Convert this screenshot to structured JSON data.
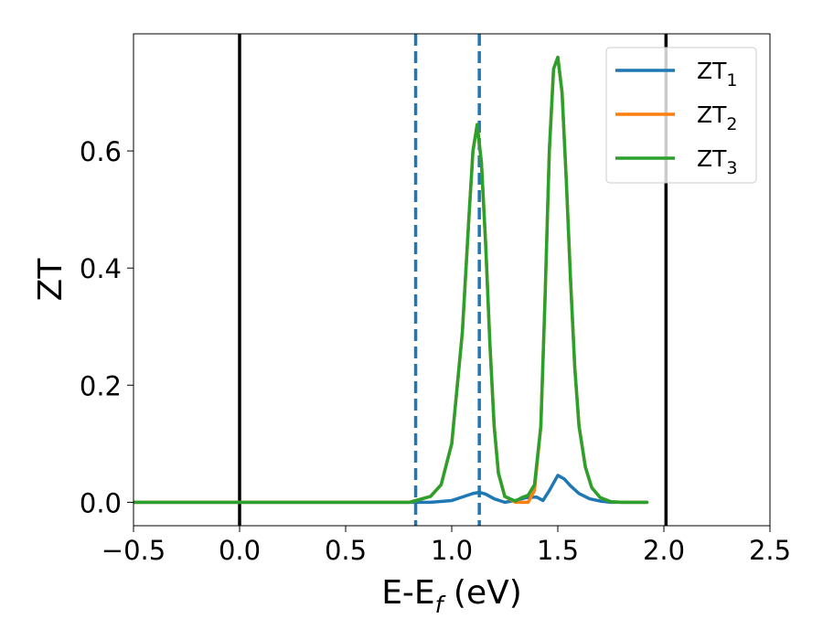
{
  "chart_data": {
    "type": "line",
    "xlabel": {
      "main": "E-E",
      "sub": "f",
      "rest": " (eV)"
    },
    "ylabel": "ZT",
    "xlim": [
      -0.5,
      2.5
    ],
    "ylim": [
      -0.04,
      0.8
    ],
    "xticks": [
      {
        "value": -0.5,
        "label": "−0.5"
      },
      {
        "value": 0.0,
        "label": "0.0"
      },
      {
        "value": 0.5,
        "label": "0.5"
      },
      {
        "value": 1.0,
        "label": "1.0"
      },
      {
        "value": 1.5,
        "label": "1.5"
      },
      {
        "value": 2.0,
        "label": "2.0"
      },
      {
        "value": 2.5,
        "label": "2.5"
      }
    ],
    "yticks": [
      {
        "value": 0.0,
        "label": "0.0"
      },
      {
        "value": 0.2,
        "label": "0.2"
      },
      {
        "value": 0.4,
        "label": "0.4"
      },
      {
        "value": 0.6,
        "label": "0.6"
      }
    ],
    "grid": false,
    "legend_position": "top-right",
    "vertical_lines": [
      {
        "x": 0.0,
        "style": "solid",
        "color": "#000000"
      },
      {
        "x": 2.01,
        "style": "solid",
        "color": "#000000"
      },
      {
        "x": 0.83,
        "style": "dashed",
        "color": "#1f77b4"
      },
      {
        "x": 1.13,
        "style": "dashed",
        "color": "#1f77b4"
      }
    ],
    "series": [
      {
        "name": "ZT",
        "name_sub": "1",
        "color": "#1f77b4",
        "x": [
          -0.5,
          0.8,
          0.9,
          1.0,
          1.05,
          1.1,
          1.13,
          1.16,
          1.2,
          1.25,
          1.3,
          1.35,
          1.4,
          1.43,
          1.46,
          1.5,
          1.53,
          1.56,
          1.6,
          1.65,
          1.7,
          1.75,
          1.8,
          1.92
        ],
        "y": [
          0.0,
          0.0,
          0.0,
          0.003,
          0.009,
          0.015,
          0.017,
          0.014,
          0.006,
          0.0,
          0.003,
          0.008,
          0.009,
          0.003,
          0.02,
          0.046,
          0.04,
          0.028,
          0.015,
          0.006,
          0.002,
          0.0,
          0.0,
          0.0
        ]
      },
      {
        "name": "ZT",
        "name_sub": "2",
        "color": "#ff7f0e",
        "x": [
          -0.5,
          0.8,
          0.9,
          0.95,
          1.0,
          1.05,
          1.08,
          1.1,
          1.12,
          1.14,
          1.16,
          1.18,
          1.2,
          1.22,
          1.25,
          1.3,
          1.33,
          1.36,
          1.39,
          1.42,
          1.44,
          1.46,
          1.48,
          1.5,
          1.52,
          1.54,
          1.56,
          1.58,
          1.6,
          1.63,
          1.66,
          1.7,
          1.75,
          1.8,
          1.92
        ],
        "y": [
          0.0,
          0.0,
          0.01,
          0.03,
          0.1,
          0.29,
          0.48,
          0.6,
          0.645,
          0.58,
          0.44,
          0.27,
          0.13,
          0.05,
          0.01,
          0.0,
          0.0,
          0.0,
          0.02,
          0.13,
          0.35,
          0.6,
          0.74,
          0.76,
          0.7,
          0.55,
          0.38,
          0.23,
          0.13,
          0.06,
          0.025,
          0.008,
          0.001,
          0.0,
          0.0
        ]
      },
      {
        "name": "ZT",
        "name_sub": "3",
        "color": "#2ca02c",
        "x": [
          -0.5,
          0.8,
          0.9,
          0.95,
          1.0,
          1.05,
          1.08,
          1.1,
          1.12,
          1.14,
          1.16,
          1.18,
          1.2,
          1.22,
          1.25,
          1.3,
          1.33,
          1.36,
          1.39,
          1.42,
          1.44,
          1.46,
          1.48,
          1.5,
          1.52,
          1.54,
          1.56,
          1.58,
          1.6,
          1.63,
          1.66,
          1.7,
          1.75,
          1.8,
          1.92
        ],
        "y": [
          0.0,
          0.0,
          0.01,
          0.03,
          0.1,
          0.29,
          0.48,
          0.6,
          0.645,
          0.58,
          0.44,
          0.27,
          0.13,
          0.05,
          0.01,
          0.002,
          0.008,
          0.012,
          0.03,
          0.13,
          0.35,
          0.6,
          0.74,
          0.76,
          0.7,
          0.55,
          0.38,
          0.23,
          0.13,
          0.06,
          0.025,
          0.008,
          0.001,
          0.0,
          0.0
        ]
      }
    ]
  }
}
